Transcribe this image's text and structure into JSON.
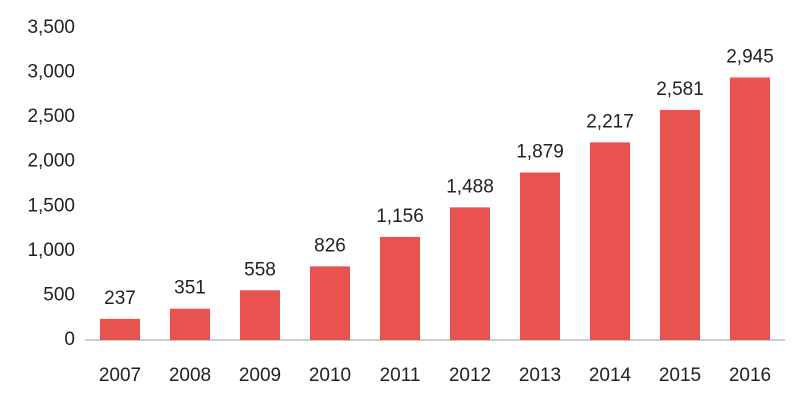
{
  "chart_data": {
    "type": "bar",
    "categories": [
      "2007",
      "2008",
      "2009",
      "2010",
      "2011",
      "2012",
      "2013",
      "2014",
      "2015",
      "2016"
    ],
    "values": [
      237,
      351,
      558,
      826,
      1156,
      1488,
      1879,
      2217,
      2581,
      2945
    ],
    "value_labels": [
      "237",
      "351",
      "558",
      "826",
      "1,156",
      "1,488",
      "1,879",
      "2,217",
      "2,581",
      "2,945"
    ],
    "color": "#e85350",
    "ylim": [
      0,
      3500
    ],
    "yticks": [
      0,
      500,
      {
        "value": 1000,
        "label": "1,000"
      },
      {
        "value": 1500,
        "label": "1,500"
      },
      {
        "value": 2000,
        "label": "2,000"
      },
      {
        "value": 2500,
        "label": "2,500"
      },
      {
        "value": 3000,
        "label": "3,000"
      },
      {
        "value": 3500,
        "label": "3,500"
      }
    ],
    "grid": false
  }
}
